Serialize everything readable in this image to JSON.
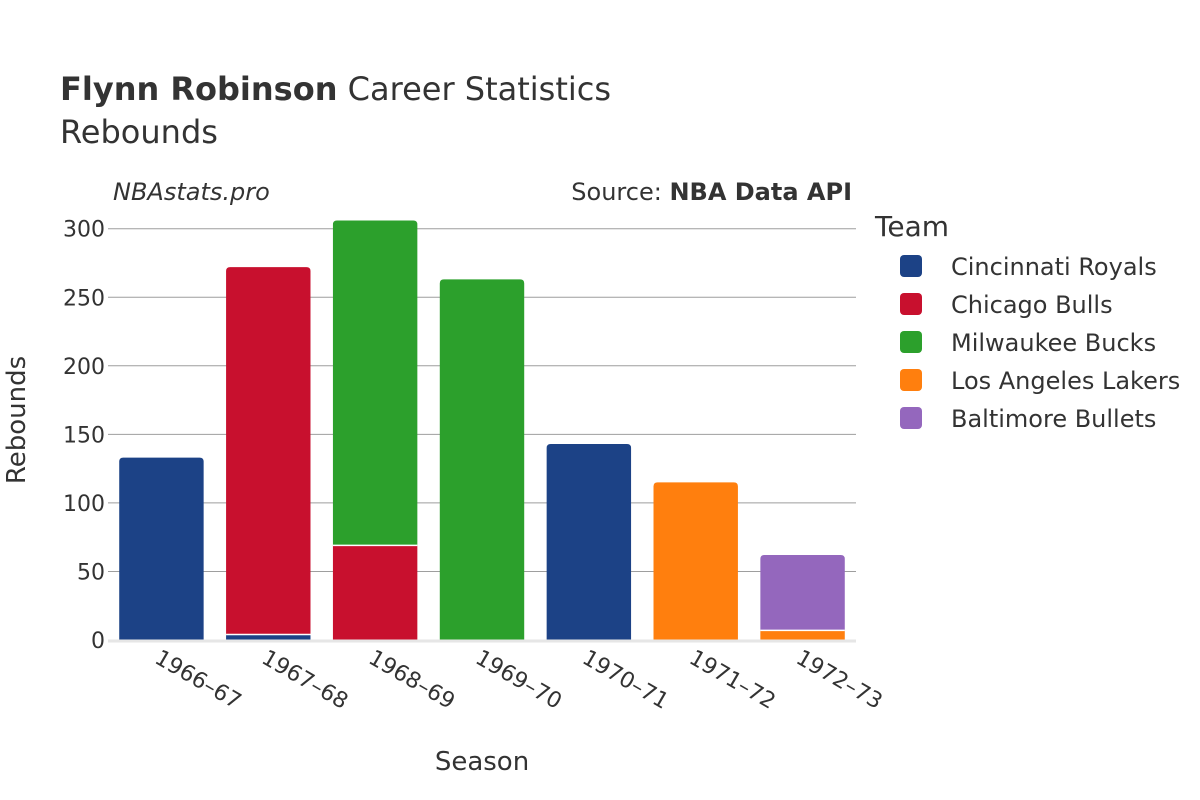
{
  "chart_data": {
    "type": "bar",
    "stacked": true,
    "title_bold": "Flynn Robinson",
    "title_rest": "Career Statistics",
    "subtitle": "Rebounds",
    "brand": "NBAstats.pro",
    "source_prefix": "Source:",
    "source_name": "NBA Data API",
    "xlabel": "Season",
    "ylabel": "Rebounds",
    "ylim": [
      0,
      310
    ],
    "yticks": [
      0,
      50,
      100,
      150,
      200,
      250,
      300
    ],
    "grid": true,
    "legend_title": "Team",
    "legend_position": "right",
    "categories": [
      "1966–67",
      "1967–68",
      "1968–69",
      "1969–70",
      "1970–71",
      "1971–72",
      "1972–73"
    ],
    "series": [
      {
        "name": "Cincinnati Royals",
        "color": "#1c4286",
        "values": [
          133,
          4,
          0,
          0,
          143,
          0,
          0
        ]
      },
      {
        "name": "Chicago Bulls",
        "color": "#c8102e",
        "values": [
          0,
          268,
          69,
          0,
          0,
          0,
          0
        ]
      },
      {
        "name": "Milwaukee Bucks",
        "color": "#2ca02c",
        "values": [
          0,
          0,
          237,
          263,
          0,
          0,
          0
        ]
      },
      {
        "name": "Los Angeles Lakers",
        "color": "#ff7f0e",
        "values": [
          0,
          0,
          0,
          0,
          0,
          115,
          7
        ]
      },
      {
        "name": "Baltimore Bullets",
        "color": "#9467bd",
        "values": [
          0,
          0,
          0,
          0,
          0,
          0,
          55
        ]
      }
    ]
  }
}
